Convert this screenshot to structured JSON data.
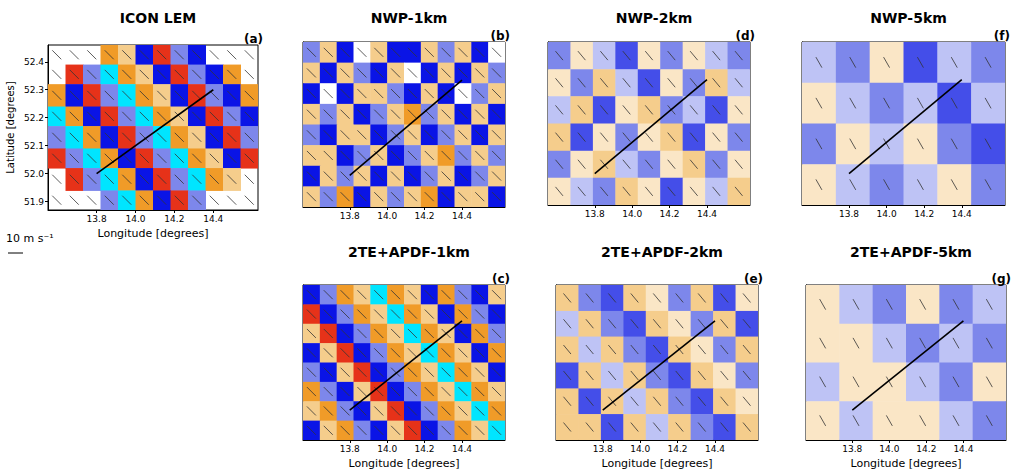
{
  "chart_data": [
    {
      "type": "heatmap",
      "title": "ICON LEM",
      "panel_label": "(a)",
      "xlabel": "Longitude [degrees]",
      "ylabel": "Latitude [degrees]",
      "xlim": [
        13.55,
        14.63
      ],
      "ylim": [
        51.87,
        52.46
      ],
      "xticks": [
        13.8,
        {
          "value": 14,
          "label": "14.0"
        },
        14.2,
        14.4
      ],
      "yticks": [
        51.9,
        {
          "value": 52,
          "label": "52.0"
        },
        52.1,
        52.2,
        52.3,
        52.4
      ],
      "grid": false,
      "color_range": [
        -3,
        3
      ],
      "cells": {
        "lon_edges": [
          13.55,
          13.64,
          13.73,
          13.82,
          13.91,
          14.0,
          14.09,
          14.18,
          14.27,
          14.36,
          14.45,
          14.54,
          14.63
        ],
        "lat_edges": [
          52.46,
          52.39,
          52.32,
          52.24,
          52.17,
          52.09,
          52.02,
          51.94,
          51.87
        ],
        "values": [
          [
            null,
            null,
            null,
            2,
            1,
            -2,
            3,
            -1,
            -2,
            null,
            null,
            null
          ],
          [
            null,
            3,
            -1,
            -3,
            2,
            1,
            -2,
            3,
            -1,
            -2,
            2,
            null
          ],
          [
            2,
            -2,
            3,
            -1,
            -3,
            2,
            1,
            -2,
            3,
            -1,
            -2,
            2
          ],
          [
            -3,
            2,
            -2,
            3,
            -1,
            -3,
            2,
            1,
            -2,
            3,
            -1,
            -2
          ],
          [
            -1,
            -3,
            2,
            -2,
            3,
            -1,
            -3,
            2,
            1,
            -2,
            3,
            -1
          ],
          [
            3,
            -1,
            -3,
            2,
            -2,
            3,
            -1,
            -3,
            2,
            1,
            -2,
            3
          ],
          [
            null,
            3,
            -1,
            -3,
            2,
            -2,
            3,
            -1,
            -3,
            2,
            1,
            null
          ],
          [
            null,
            null,
            null,
            -1,
            -3,
            2,
            -2,
            3,
            -1,
            null,
            null,
            null
          ]
        ]
      },
      "wind": {
        "u": 6,
        "v": -6
      },
      "section_line": {
        "x": [
          13.8,
          14.4
        ],
        "y": [
          52.0,
          52.3
        ]
      },
      "reference_vector": {
        "speed": 10,
        "label": "10 m s⁻¹"
      }
    },
    {
      "type": "heatmap",
      "title": "NWP-1km",
      "panel_label": "(b)",
      "xlim": [
        13.55,
        14.63
      ],
      "ylim": [
        51.9,
        52.42
      ],
      "xticks": [
        13.8,
        {
          "value": 14,
          "label": "14.0"
        },
        14.2,
        14.4
      ],
      "tick_labels": "x",
      "grid": false,
      "color_range": [
        -3,
        3
      ],
      "cells": {
        "lon_edges": [
          13.55,
          13.64,
          13.73,
          13.82,
          13.91,
          14.0,
          14.09,
          14.18,
          14.27,
          14.36,
          14.45,
          14.54,
          14.63
        ],
        "lat_edges": [
          52.42,
          52.355,
          52.29,
          52.225,
          52.16,
          52.095,
          52.03,
          51.965,
          51.9
        ],
        "values": [
          [
            -1,
            1,
            -2,
            0,
            1,
            -2,
            -2,
            1,
            -1,
            1,
            -2,
            0
          ],
          [
            1,
            -2,
            1,
            -1,
            -2,
            1,
            0,
            -2,
            1,
            -2,
            1,
            -1
          ],
          [
            -2,
            0,
            -2,
            1,
            1,
            -1,
            -2,
            1,
            -2,
            0,
            -1,
            1
          ],
          [
            1,
            -1,
            1,
            -2,
            -1,
            1,
            2,
            -1,
            1,
            -2,
            1,
            -2
          ],
          [
            -1,
            -2,
            1,
            1,
            -2,
            -1,
            1,
            -2,
            -1,
            1,
            -2,
            1
          ],
          [
            1,
            1,
            -2,
            -1,
            1,
            -2,
            -1,
            1,
            2,
            -1,
            1,
            -1
          ],
          [
            -2,
            1,
            -1,
            1,
            -2,
            1,
            -2,
            -1,
            1,
            -2,
            -1,
            1
          ],
          [
            1,
            -1,
            2,
            -2,
            1,
            -1,
            1,
            2,
            -2,
            1,
            1,
            -2
          ]
        ]
      },
      "wind": {
        "u": 6,
        "v": -6
      },
      "section_line": {
        "x": [
          13.8,
          14.4
        ],
        "y": [
          52.0,
          52.3
        ]
      }
    },
    {
      "type": "heatmap",
      "title": "2TE+APDF-1km",
      "panel_label": "(c)",
      "xlabel": "Longitude [degrees]",
      "xlim": [
        13.55,
        14.63
      ],
      "ylim": [
        51.9,
        52.42
      ],
      "xticks": [
        13.8,
        {
          "value": 14,
          "label": "14.0"
        },
        14.2,
        14.4
      ],
      "tick_labels": "x",
      "grid": false,
      "color_range": [
        -3,
        3
      ],
      "cells": {
        "lon_edges": [
          13.55,
          13.64,
          13.73,
          13.82,
          13.91,
          14.0,
          14.09,
          14.18,
          14.27,
          14.36,
          14.45,
          14.54,
          14.63
        ],
        "lat_edges": [
          52.42,
          52.355,
          52.29,
          52.225,
          52.16,
          52.095,
          52.03,
          51.965,
          51.9
        ],
        "values": [
          [
            -2,
            -1,
            2,
            1,
            -3,
            2,
            1,
            -2,
            2,
            -1,
            -2,
            1
          ],
          [
            3,
            -2,
            -1,
            2,
            1,
            -3,
            2,
            1,
            -2,
            2,
            -1,
            -2
          ],
          [
            1,
            3,
            -2,
            -1,
            2,
            1,
            -3,
            2,
            1,
            -2,
            2,
            -1
          ],
          [
            -2,
            1,
            3,
            -2,
            -1,
            2,
            1,
            -3,
            2,
            1,
            -2,
            2
          ],
          [
            -1,
            -2,
            1,
            3,
            -2,
            -1,
            2,
            1,
            -3,
            2,
            1,
            -2
          ],
          [
            2,
            -1,
            -2,
            1,
            3,
            -2,
            -1,
            2,
            1,
            -3,
            2,
            1
          ],
          [
            1,
            2,
            -1,
            -2,
            1,
            3,
            -2,
            -1,
            2,
            1,
            -3,
            2
          ],
          [
            -2,
            1,
            2,
            -1,
            -2,
            1,
            3,
            -2,
            -1,
            2,
            1,
            -3
          ]
        ]
      },
      "wind": {
        "u": 6,
        "v": -6
      },
      "section_line": {
        "x": [
          13.8,
          14.4
        ],
        "y": [
          52.0,
          52.3
        ]
      }
    },
    {
      "type": "heatmap",
      "title": "NWP-2km",
      "panel_label": "(d)",
      "xlim": [
        13.55,
        14.63
      ],
      "ylim": [
        51.9,
        52.42
      ],
      "xticks": [
        13.8,
        {
          "value": 14,
          "label": "14.0"
        },
        14.2,
        14.4
      ],
      "tick_labels": "x",
      "grid": false,
      "color_range": [
        -3,
        3
      ],
      "cells": {
        "lon_edges": [
          13.55,
          13.67,
          13.79,
          13.91,
          14.03,
          14.15,
          14.27,
          14.39,
          14.51,
          14.63
        ],
        "lat_edges": [
          52.42,
          52.333,
          52.247,
          52.16,
          52.073,
          51.987,
          51.9
        ],
        "values": [
          [
            -1,
            0.5,
            -0.5,
            -1.5,
            0.5,
            -1,
            0.5,
            -0.5,
            -1
          ],
          [
            0.5,
            -1,
            1,
            -0.5,
            -1.5,
            0.5,
            -1,
            1,
            -0.5
          ],
          [
            -0.5,
            1,
            -1.5,
            0.5,
            1,
            -1,
            -0.5,
            -1.5,
            0.5
          ],
          [
            1,
            -1.5,
            0.5,
            -1,
            0.5,
            1,
            -1.5,
            0.5,
            -1
          ],
          [
            -1,
            0.5,
            1,
            -0.5,
            -1,
            0.5,
            1,
            -1,
            0.5
          ],
          [
            0.5,
            -0.5,
            -1,
            1,
            0.5,
            -1.5,
            0.5,
            -0.5,
            1
          ]
        ]
      },
      "wind": {
        "u": 5,
        "v": -6
      },
      "section_line": {
        "x": [
          13.8,
          14.4
        ],
        "y": [
          52.0,
          52.3
        ]
      }
    },
    {
      "type": "heatmap",
      "title": "2TE+APDF-2km",
      "panel_label": "(e)",
      "xlabel": "Longitude [degrees]",
      "xlim": [
        13.55,
        14.63
      ],
      "ylim": [
        51.9,
        52.42
      ],
      "xticks": [
        13.8,
        {
          "value": 14,
          "label": "14.0"
        },
        14.2,
        14.4
      ],
      "tick_labels": "x",
      "grid": false,
      "color_range": [
        -3,
        3
      ],
      "cells": {
        "lon_edges": [
          13.55,
          13.67,
          13.79,
          13.91,
          14.03,
          14.15,
          14.27,
          14.39,
          14.51,
          14.63
        ],
        "lat_edges": [
          52.42,
          52.333,
          52.247,
          52.16,
          52.073,
          51.987,
          51.9
        ],
        "values": [
          [
            1,
            -1,
            -1.5,
            1,
            0.5,
            -1,
            1,
            -1.5,
            0.5
          ],
          [
            -0.5,
            1,
            -1,
            -1.5,
            1,
            0.5,
            -1,
            1,
            -1.5
          ],
          [
            1,
            -0.5,
            1,
            -1,
            -1.5,
            1,
            0.5,
            -1,
            1
          ],
          [
            -1.5,
            1,
            -0.5,
            1,
            -1,
            -1.5,
            1,
            0.5,
            -1
          ],
          [
            1,
            -1.5,
            1,
            -0.5,
            1,
            -1,
            -1.5,
            1,
            0.5
          ],
          [
            1,
            1,
            -1.5,
            1,
            -0.5,
            1,
            -1,
            -1.5,
            1
          ]
        ]
      },
      "wind": {
        "u": 5,
        "v": -6
      },
      "section_line": {
        "x": [
          13.8,
          14.4
        ],
        "y": [
          52.0,
          52.3
        ]
      }
    },
    {
      "type": "heatmap",
      "title": "NWP-5km",
      "panel_label": "(f)",
      "xlim": [
        13.55,
        14.63
      ],
      "ylim": [
        51.9,
        52.42
      ],
      "xticks": [
        13.8,
        {
          "value": 14,
          "label": "14.0"
        },
        14.2,
        14.4
      ],
      "tick_labels": "x",
      "grid": false,
      "color_range": [
        -3,
        3
      ],
      "cells": {
        "lon_edges": [
          13.55,
          13.73,
          13.91,
          14.09,
          14.27,
          14.45,
          14.63
        ],
        "lat_edges": [
          52.42,
          52.29,
          52.16,
          52.03,
          51.9
        ],
        "values": [
          [
            -0.5,
            -1,
            0.5,
            -1.5,
            -0.5,
            -1
          ],
          [
            0.5,
            -0.5,
            -1,
            -0.5,
            -1.5,
            -0.5
          ],
          [
            -1,
            0.5,
            -0.5,
            0.5,
            -1,
            -1.5
          ],
          [
            0.5,
            -0.5,
            -1,
            -0.5,
            0.5,
            -1
          ]
        ]
      },
      "wind": {
        "u": 4,
        "v": -7
      },
      "section_line": {
        "x": [
          13.8,
          14.4
        ],
        "y": [
          52.0,
          52.3
        ]
      }
    },
    {
      "type": "heatmap",
      "title": "2TE+APDF-5km",
      "panel_label": "(g)",
      "xlabel": "Longitude [degrees]",
      "xlim": [
        13.55,
        14.63
      ],
      "ylim": [
        51.9,
        52.42
      ],
      "xticks": [
        13.8,
        {
          "value": 14,
          "label": "14.0"
        },
        14.2,
        14.4
      ],
      "tick_labels": "x",
      "grid": false,
      "color_range": [
        -3,
        3
      ],
      "cells": {
        "lon_edges": [
          13.55,
          13.73,
          13.91,
          14.09,
          14.27,
          14.45,
          14.63
        ],
        "lat_edges": [
          52.42,
          52.29,
          52.16,
          52.03,
          51.9
        ],
        "values": [
          [
            0.5,
            -0.5,
            -1,
            0.5,
            -1,
            -0.5
          ],
          [
            0.5,
            0.5,
            -0.5,
            -1,
            -0.5,
            -1
          ],
          [
            -0.5,
            0.5,
            0.5,
            -0.5,
            -1,
            0.5
          ],
          [
            0.5,
            -0.5,
            0.5,
            0.5,
            -0.5,
            -1
          ]
        ]
      },
      "wind": {
        "u": 4,
        "v": -7
      },
      "section_line": {
        "x": [
          13.8,
          14.4
        ],
        "y": [
          52.0,
          52.3
        ]
      }
    }
  ]
}
